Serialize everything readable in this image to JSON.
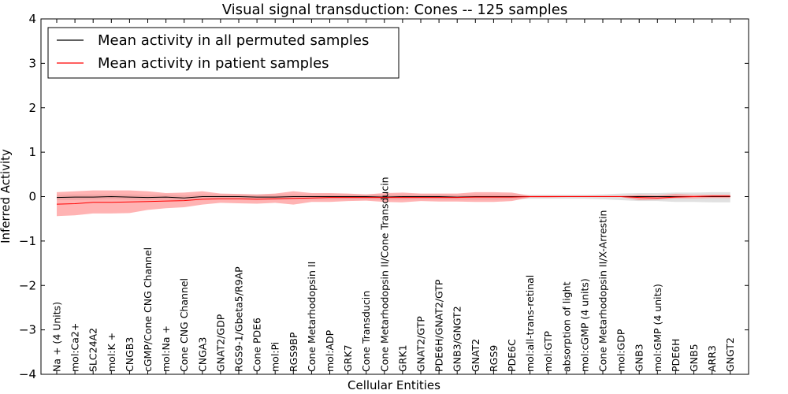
{
  "chart_data": {
    "type": "line",
    "title": "Visual signal transduction: Cones -- 125 samples",
    "xlabel": "Cellular Entities",
    "ylabel": "Inferred Activity",
    "ylim": [
      -4,
      4
    ],
    "yticks": [
      -4,
      -3,
      -2,
      -1,
      0,
      1,
      2,
      3,
      4
    ],
    "ytick_labels": [
      "−4",
      "−3",
      "−2",
      "−1",
      "0",
      "1",
      "2",
      "3",
      "4"
    ],
    "grid": false,
    "legend_position": "top-left",
    "categories": [
      "Na + (4 Units)",
      "mol:Ca2+",
      "SLC24A2",
      "mol:K +",
      "CNGB3",
      "cGMP/Cone CNG Channel",
      "mol:Na +",
      "Cone CNG Channel",
      "CNGA3",
      "GNAT2/GDP",
      "RGS9-1/Gbeta5/R9AP",
      "Cone PDE6",
      "mol:Pi",
      "RGS9BP",
      "Cone Metarhodopsin II",
      "mol:ADP",
      "GRK7",
      "Cone Transducin",
      "Cone Metarhodopsin II/Cone Transducin",
      "GRK1",
      "GNAT2/GTP",
      "PDE6H/GNAT2/GTP",
      "GNB3/GNGT2",
      "GNAT2",
      "RGS9",
      "PDE6C",
      "mol:all-trans-retinal",
      "mol:GTP",
      "absorption of light",
      "mol:cGMP (4 units)",
      "Cone Metarhodopsin II/X-Arrestin",
      "mol:GDP",
      "GNB3",
      "mol:GMP (4 units)",
      "PDE6H",
      "GNB5",
      "ARR3",
      "GNGT2"
    ],
    "series": [
      {
        "name": "Mean activity in all permuted samples",
        "color": "#000000",
        "band_color": "#b3b3b3",
        "values": [
          -0.02,
          -0.01,
          -0.01,
          0.0,
          -0.01,
          -0.02,
          -0.01,
          -0.03,
          0.0,
          0.0,
          0.0,
          -0.01,
          -0.01,
          0.0,
          0.0,
          0.0,
          0.0,
          0.0,
          -0.01,
          0.0,
          0.0,
          0.0,
          -0.01,
          0.0,
          0.0,
          0.0,
          0.0,
          0.0,
          0.0,
          0.0,
          0.0,
          0.0,
          0.0,
          0.0,
          0.0,
          0.0,
          0.0,
          0.0
        ],
        "lower": [
          -0.08,
          -0.08,
          -0.07,
          -0.06,
          -0.07,
          -0.08,
          -0.07,
          -0.08,
          -0.06,
          -0.06,
          -0.06,
          -0.07,
          -0.07,
          -0.06,
          -0.06,
          -0.06,
          -0.06,
          -0.06,
          -0.07,
          -0.07,
          -0.06,
          -0.06,
          -0.07,
          -0.07,
          -0.07,
          -0.06,
          -0.05,
          -0.05,
          -0.05,
          -0.05,
          -0.06,
          -0.08,
          -0.1,
          -0.1,
          -0.12,
          -0.12,
          -0.13,
          -0.13
        ],
        "upper": [
          0.04,
          0.05,
          0.05,
          0.05,
          0.05,
          0.04,
          0.05,
          0.03,
          0.05,
          0.05,
          0.05,
          0.05,
          0.05,
          0.05,
          0.05,
          0.05,
          0.05,
          0.05,
          0.05,
          0.05,
          0.05,
          0.05,
          0.04,
          0.05,
          0.05,
          0.05,
          0.04,
          0.04,
          0.04,
          0.04,
          0.05,
          0.07,
          0.08,
          0.08,
          0.09,
          0.09,
          0.1,
          0.1
        ]
      },
      {
        "name": "Mean activity in patient samples",
        "color": "#ff0000",
        "band_color": "#ff8080",
        "values": [
          -0.17,
          -0.16,
          -0.13,
          -0.13,
          -0.12,
          -0.11,
          -0.1,
          -0.09,
          -0.06,
          -0.05,
          -0.05,
          -0.06,
          -0.05,
          -0.04,
          -0.03,
          -0.02,
          -0.02,
          -0.02,
          -0.02,
          -0.02,
          -0.02,
          -0.02,
          -0.02,
          -0.01,
          -0.01,
          -0.01,
          0.0,
          0.0,
          0.0,
          0.0,
          0.0,
          0.0,
          -0.02,
          -0.03,
          -0.01,
          0.0,
          0.01,
          0.01
        ],
        "lower": [
          -0.44,
          -0.42,
          -0.38,
          -0.38,
          -0.37,
          -0.3,
          -0.26,
          -0.24,
          -0.18,
          -0.14,
          -0.15,
          -0.16,
          -0.14,
          -0.18,
          -0.12,
          -0.12,
          -0.1,
          -0.09,
          -0.12,
          -0.13,
          -0.1,
          -0.11,
          -0.11,
          -0.12,
          -0.12,
          -0.1,
          -0.02,
          -0.02,
          -0.01,
          -0.01,
          -0.01,
          -0.01,
          -0.08,
          -0.07,
          -0.04,
          -0.04,
          -0.03,
          -0.03
        ],
        "upper": [
          0.1,
          0.12,
          0.14,
          0.14,
          0.14,
          0.12,
          0.08,
          0.09,
          0.12,
          0.07,
          0.06,
          0.05,
          0.07,
          0.12,
          0.08,
          0.08,
          0.07,
          0.05,
          0.08,
          0.09,
          0.07,
          0.07,
          0.07,
          0.1,
          0.1,
          0.09,
          0.02,
          0.02,
          0.02,
          0.02,
          0.02,
          0.02,
          0.04,
          0.03,
          0.06,
          0.04,
          0.04,
          0.04
        ]
      }
    ]
  }
}
